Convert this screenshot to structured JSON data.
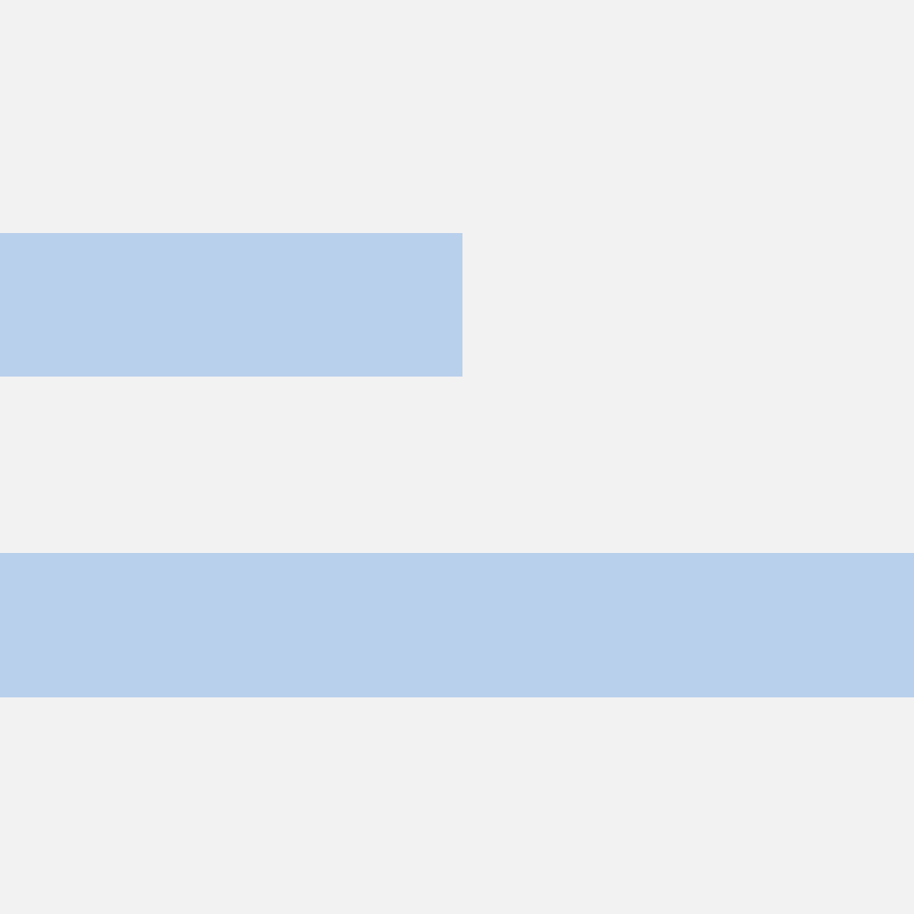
{
  "colors": {
    "background": "#f2f2f2",
    "bar": "#b9d0ec"
  }
}
